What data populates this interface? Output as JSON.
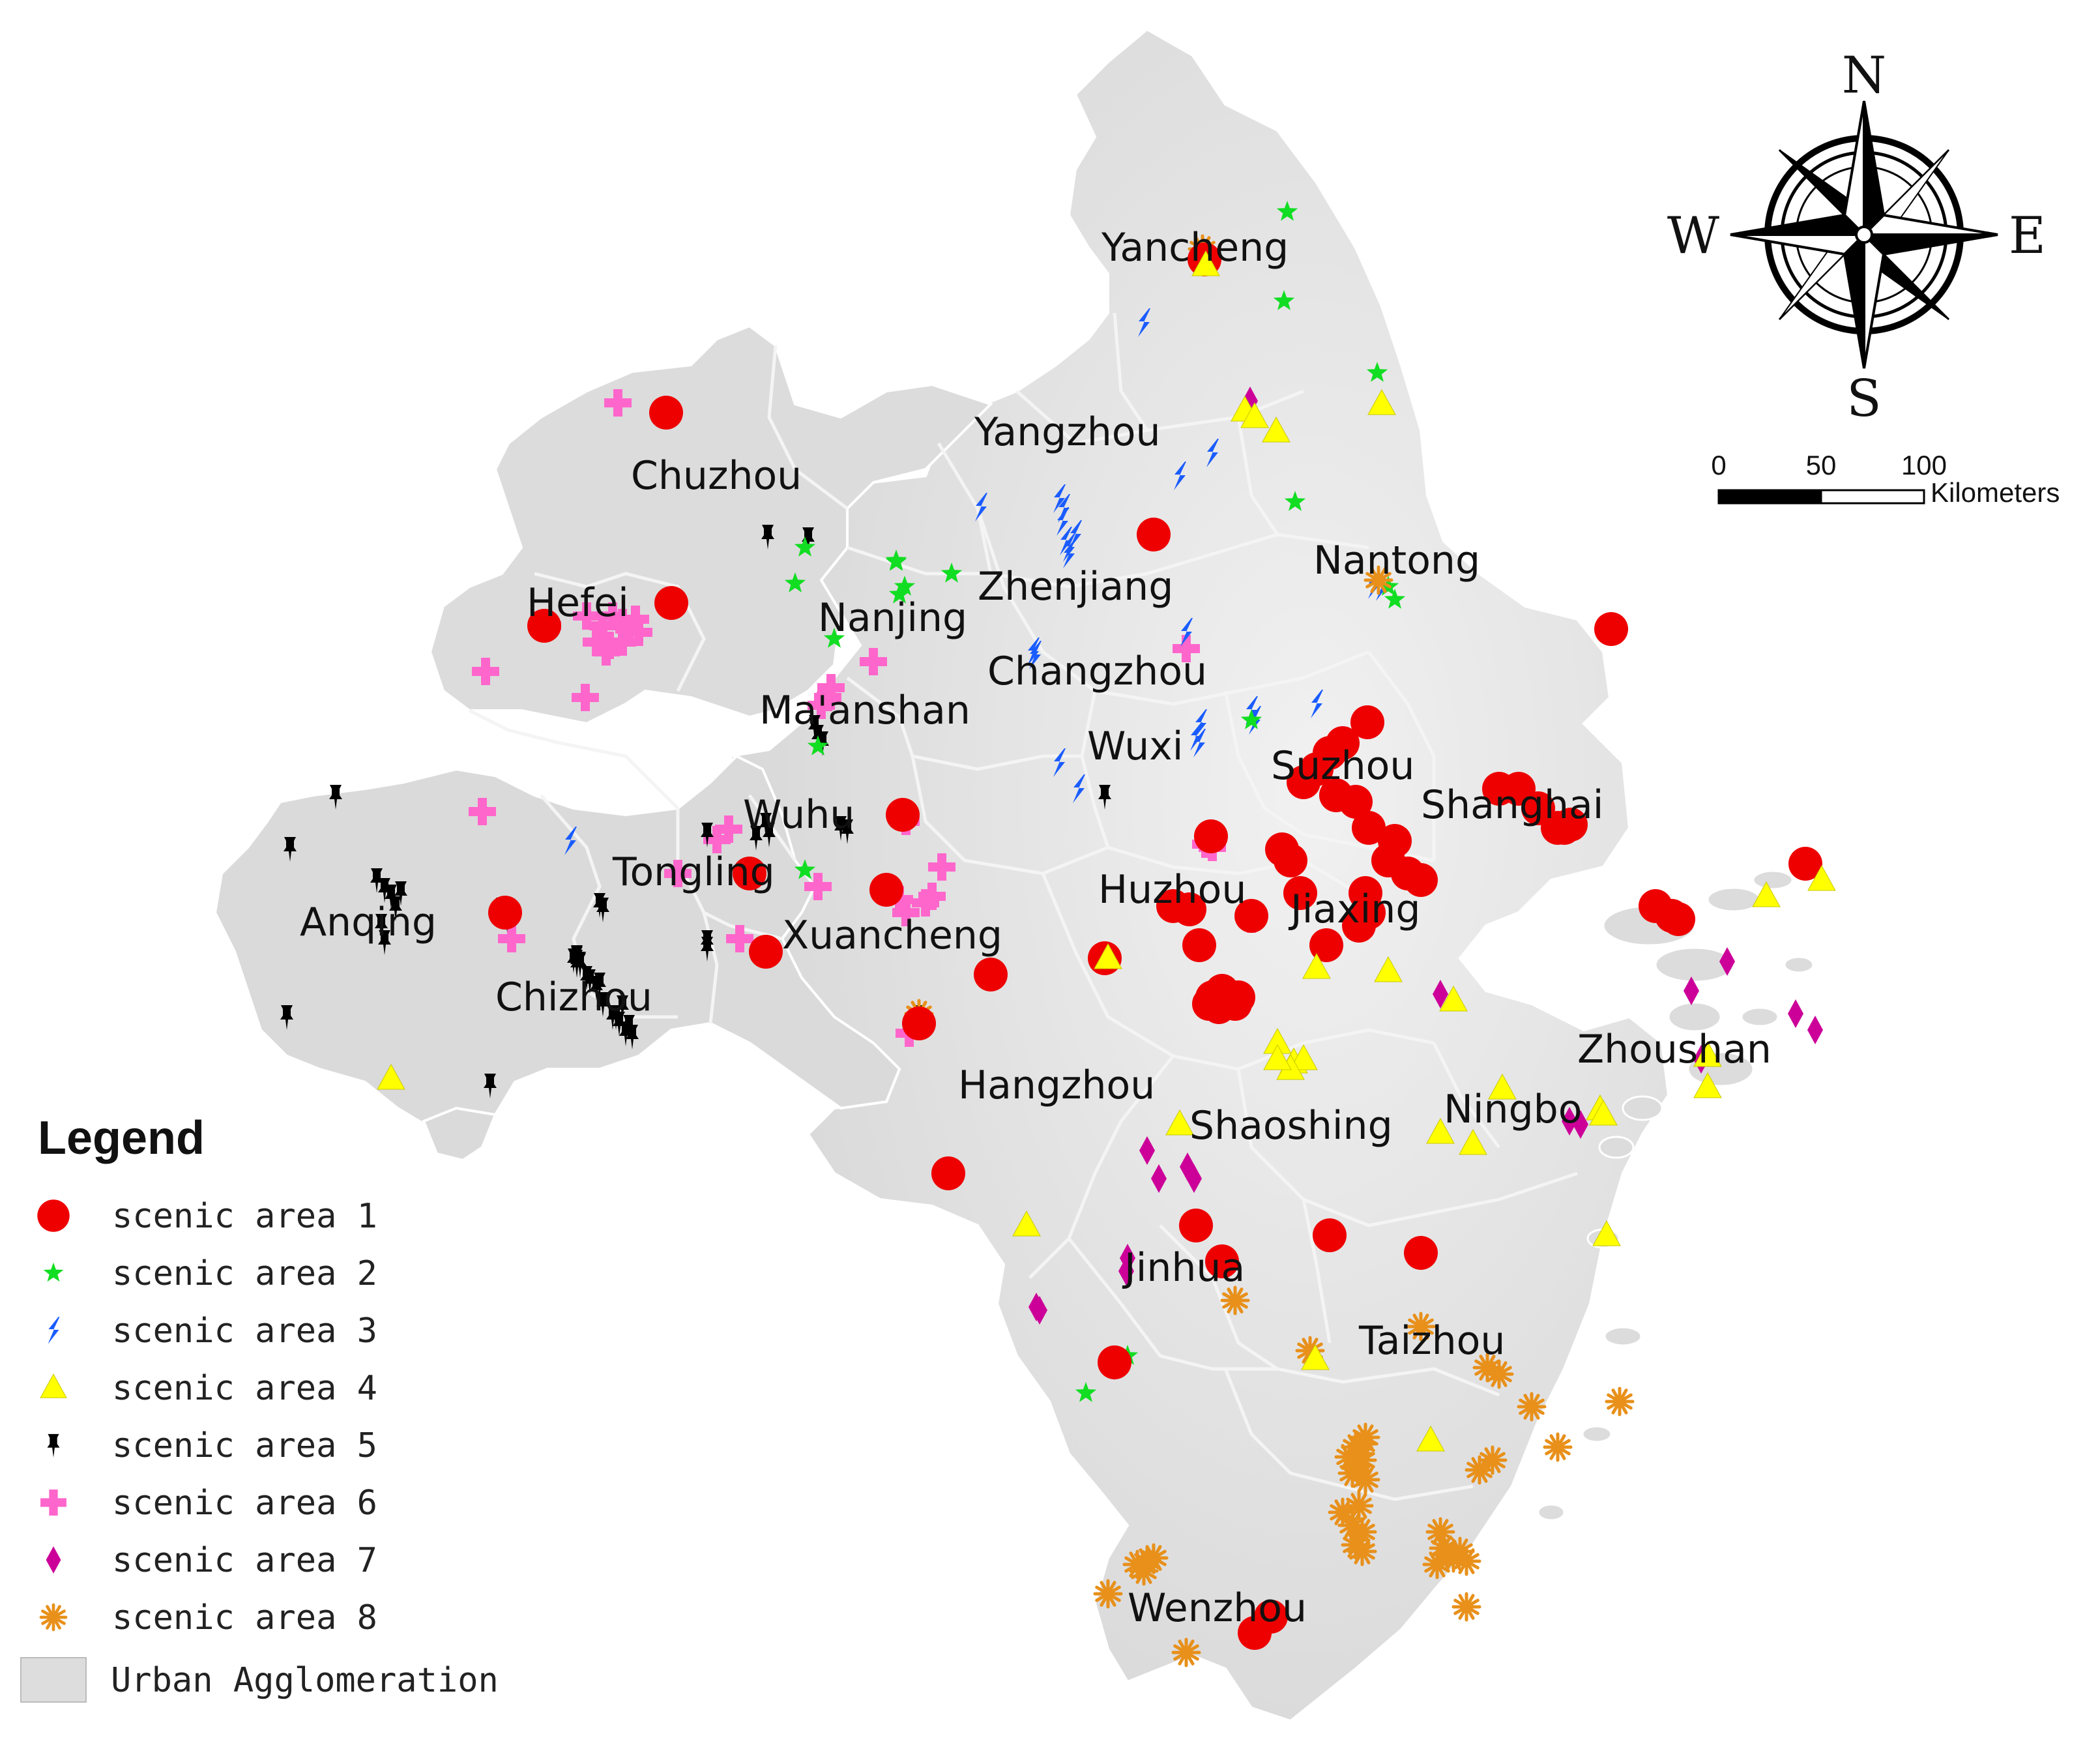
{
  "legend": {
    "title": "Legend",
    "items": [
      {
        "id": "s1",
        "label": "scenic area 1",
        "symbol": "circle",
        "color": "#ee0000"
      },
      {
        "id": "s2",
        "label": "scenic area 2",
        "symbol": "star",
        "color": "#11dd22"
      },
      {
        "id": "s3",
        "label": "scenic area 3",
        "symbol": "bolt",
        "color": "#1a5cff"
      },
      {
        "id": "s4",
        "label": "scenic area 4",
        "symbol": "triangle",
        "color": "#ffff00"
      },
      {
        "id": "s5",
        "label": "scenic area 5",
        "symbol": "pushpin",
        "color": "#000000"
      },
      {
        "id": "s6",
        "label": "scenic area 6",
        "symbol": "cross",
        "color": "#ff66cc"
      },
      {
        "id": "s7",
        "label": "scenic area 7",
        "symbol": "diamond",
        "color": "#cc0099"
      },
      {
        "id": "s8",
        "label": "scenic area 8",
        "symbol": "asterisk",
        "color": "#e8901a"
      },
      {
        "id": "ua",
        "label": "Urban Agglomeration",
        "symbol": "square",
        "color": "#dddddd"
      }
    ]
  },
  "compass": {
    "n": "N",
    "s": "S",
    "e": "E",
    "w": "W"
  },
  "scale": {
    "ticks": [
      "0",
      "50",
      "100"
    ],
    "unit": "Kilometers"
  },
  "cities": [
    {
      "name": "Yancheng"
    },
    {
      "name": "Yangzhou"
    },
    {
      "name": "Chuzhou"
    },
    {
      "name": "Nantong"
    },
    {
      "name": "Hefei"
    },
    {
      "name": "Zhenjiang"
    },
    {
      "name": "Nanjing"
    },
    {
      "name": "Changzhou"
    },
    {
      "name": "Ma'anshan"
    },
    {
      "name": "Wuxi"
    },
    {
      "name": "Suzhou"
    },
    {
      "name": "Shanghai"
    },
    {
      "name": "Wuhu"
    },
    {
      "name": "Tongling"
    },
    {
      "name": "Anqing"
    },
    {
      "name": "Huzhou"
    },
    {
      "name": "Jiaxing"
    },
    {
      "name": "Xuancheng"
    },
    {
      "name": "Chizhou"
    },
    {
      "name": "Zhoushan"
    },
    {
      "name": "Hangzhou"
    },
    {
      "name": "Shaoshing"
    },
    {
      "name": "Ningbo"
    },
    {
      "name": "Jinhua"
    },
    {
      "name": "Taizhou"
    },
    {
      "name": "Wenzhou"
    }
  ],
  "colors": {
    "land": "#dddddd",
    "boundary": "#f3f3f3",
    "background": "#ffffff"
  }
}
